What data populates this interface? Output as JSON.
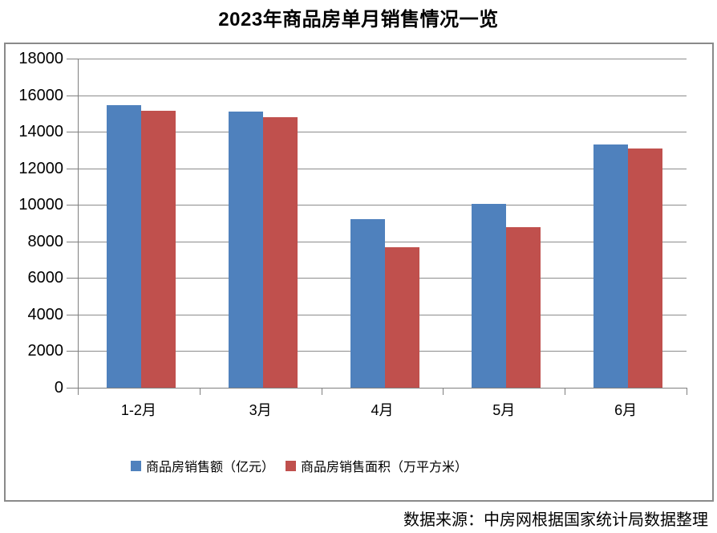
{
  "page": {
    "title": "2023年商品房单月销售情况一览",
    "source_note": "数据来源：中房网根据国家统计局数据整理"
  },
  "chart_data": {
    "type": "bar",
    "title": "2023年商品房单月销售情况一览",
    "categories": [
      "1-2月",
      "3月",
      "4月",
      "5月",
      "6月"
    ],
    "series": [
      {
        "name": "商品房销售额（亿元）",
        "color": "#4F81BD",
        "values": [
          15449,
          15096,
          9205,
          10037,
          13305
        ]
      },
      {
        "name": "商品房销售面积（万平方米）",
        "color": "#C0504D",
        "values": [
          15133,
          14813,
          7690,
          8804,
          13075
        ]
      }
    ],
    "xlabel": "",
    "ylabel": "",
    "ylim": [
      0,
      18000
    ],
    "ytick_step": 2000,
    "yticks": [
      0,
      2000,
      4000,
      6000,
      8000,
      10000,
      12000,
      14000,
      16000,
      18000
    ],
    "grid": true,
    "legend_position": "bottom",
    "gridline_color": "#8C8C8C",
    "axis_color": "#7F7F7F",
    "frame_color": "#8A8A8A",
    "source_note": "数据来源：中房网根据国家统计局数据整理"
  }
}
